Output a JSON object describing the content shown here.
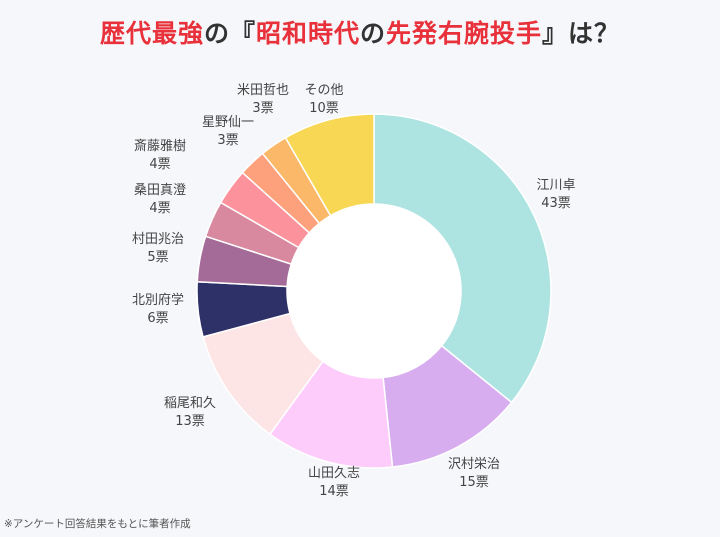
{
  "title": {
    "part1": "歴代最強",
    "part2": "の『",
    "part3": "昭和時代",
    "part4": "の",
    "part5": "先発右腕投手",
    "part6": "』は？"
  },
  "footnote": "※アンケート回答結果をもとに筆者作成",
  "colors": {
    "title_highlight": "#e8313a",
    "title_text": "#333333",
    "background": "#f6f7fb"
  },
  "chart_data": {
    "type": "pie",
    "variant": "donut",
    "unit": "票",
    "slices": [
      {
        "name": "江川卓",
        "value": 43,
        "label": "43票",
        "color": "#ade4e2"
      },
      {
        "name": "沢村栄治",
        "value": 15,
        "label": "15票",
        "color": "#d7adf0"
      },
      {
        "name": "山田久志",
        "value": 14,
        "label": "14票",
        "color": "#fdccfa"
      },
      {
        "name": "稲尾和久",
        "value": 13,
        "label": "13票",
        "color": "#fde5e6"
      },
      {
        "name": "北別府学",
        "value": 6,
        "label": "6票",
        "color": "#2e3068"
      },
      {
        "name": "村田兆治",
        "value": 5,
        "label": "5票",
        "color": "#a56b98"
      },
      {
        "name": "桑田真澄",
        "value": 4,
        "label": "4票",
        "color": "#d9899f"
      },
      {
        "name": "斎藤雅樹",
        "value": 4,
        "label": "4票",
        "color": "#fc939c"
      },
      {
        "name": "星野仙一",
        "value": 3,
        "label": "3票",
        "color": "#fda17d"
      },
      {
        "name": "米田哲也",
        "value": 3,
        "label": "3票",
        "color": "#fcb869"
      },
      {
        "name": "その他",
        "value": 10,
        "label": "10票",
        "color": "#f8d754"
      }
    ]
  }
}
